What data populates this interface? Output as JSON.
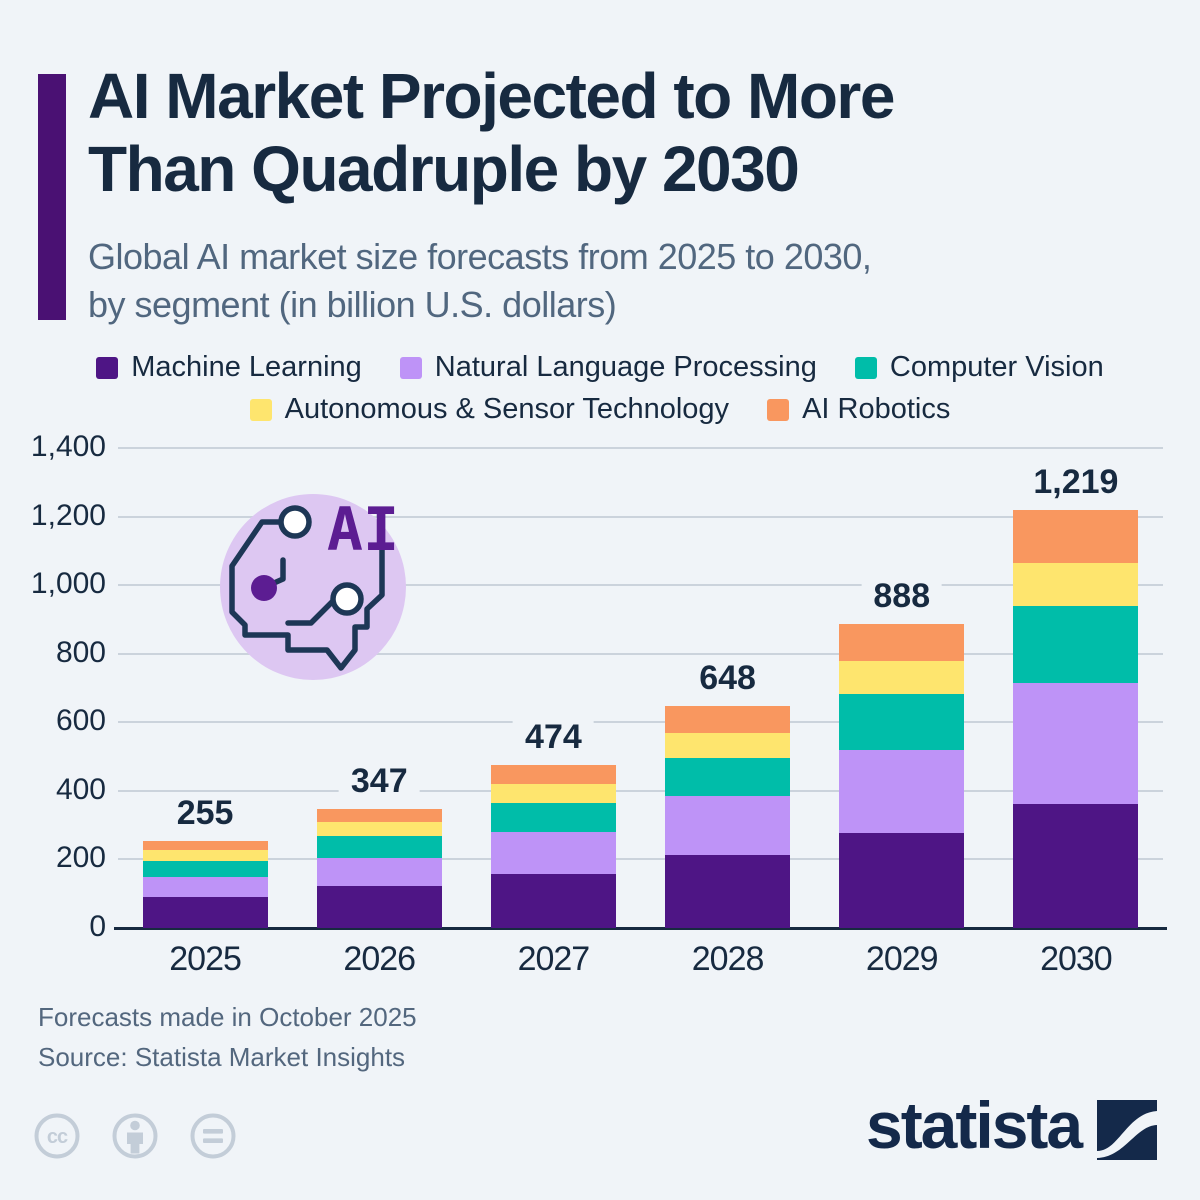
{
  "header": {
    "title_line1": "AI Market Projected to More",
    "title_line2": "Than Quadruple by 2030",
    "subtitle_line1": "Global AI market size forecasts from 2025 to 2030,",
    "subtitle_line2": "by segment (in billion U.S. dollars)"
  },
  "legend": [
    {
      "label": "Machine Learning",
      "color": "#4E1585"
    },
    {
      "label": "Natural Language Processing",
      "color": "#BE93F7"
    },
    {
      "label": "Computer Vision",
      "color": "#00BDA9"
    },
    {
      "label": "Autonomous & Sensor Technology",
      "color": "#FEE56E"
    },
    {
      "label": "AI Robotics",
      "color": "#F9975F"
    }
  ],
  "chart_data": {
    "type": "bar",
    "stacked": true,
    "title": "Global AI market size forecasts from 2025 to 2030, by segment (in billion U.S. dollars)",
    "xlabel": "",
    "ylabel": "",
    "ylim": [
      0,
      1400
    ],
    "grid": true,
    "legend_position": "top",
    "categories": [
      "2025",
      "2026",
      "2027",
      "2028",
      "2029",
      "2030"
    ],
    "series": [
      {
        "name": "Machine Learning",
        "color": "#4E1585",
        "values": [
          89,
          122,
          158,
          212,
          276,
          362
        ]
      },
      {
        "name": "Natural Language Processing",
        "color": "#BE93F7",
        "values": [
          60,
          82,
          123,
          172,
          243,
          352
        ]
      },
      {
        "name": "Computer Vision",
        "color": "#00BDA9",
        "values": [
          47,
          63,
          83,
          112,
          164,
          226
        ]
      },
      {
        "name": "Autonomous & Sensor Technology",
        "color": "#FEE56E",
        "values": [
          32,
          42,
          57,
          74,
          96,
          125
        ]
      },
      {
        "name": "AI Robotics",
        "color": "#F9975F",
        "values": [
          27,
          38,
          53,
          78,
          109,
          154
        ]
      }
    ],
    "totals": [
      "255",
      "347",
      "474",
      "648",
      "888",
      "1,219"
    ],
    "y_ticks": [
      "0",
      "200",
      "400",
      "600",
      "800",
      "1,000",
      "1,200",
      "1,400"
    ]
  },
  "icon": {
    "ai_text": "AI"
  },
  "footer": {
    "line1": "Forecasts made in October 2025",
    "line2": "Source: Statista Market Insights"
  },
  "branding": {
    "logo_text": "statista",
    "cc_label": "cc"
  },
  "colors": {
    "background": "#F0F4F8",
    "title": "#172A40",
    "subtitle": "#51677F",
    "accent_bar": "#4A1173",
    "gridline": "#CBD3DC",
    "axis_line": "#172A40",
    "footer_text": "#53677E",
    "cc_icons": "#C3CDD8",
    "logo_navy": "#14294A",
    "icon_circle_fill": "#DDC7F2",
    "icon_outline": "#1D3756",
    "icon_purple": "#5C1D92"
  }
}
